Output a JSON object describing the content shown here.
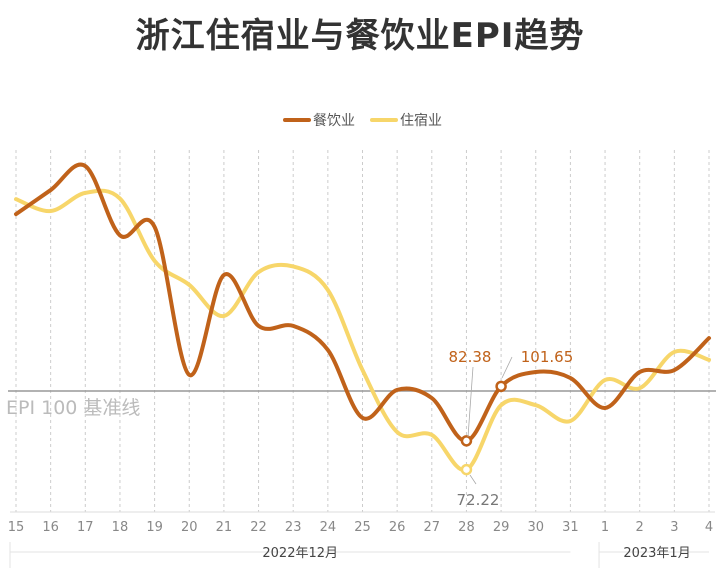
{
  "chart_data": {
    "type": "line",
    "title": "浙江住宿业与餐饮业EPI趋势",
    "categories": [
      "15",
      "16",
      "17",
      "18",
      "19",
      "20",
      "21",
      "22",
      "23",
      "24",
      "25",
      "26",
      "27",
      "28",
      "29",
      "30",
      "31",
      "1",
      "2",
      "3",
      "4"
    ],
    "month_labels": [
      {
        "label": "2022年12月",
        "from": "15",
        "to": "31"
      },
      {
        "label": "2023年1月",
        "from": "1",
        "to": "4"
      }
    ],
    "series": [
      {
        "name": "餐饮业",
        "color": "#c0621a",
        "values": [
          162.5,
          171,
          179.5,
          155,
          158,
          105.7,
          141,
          123,
          123,
          114.5,
          90.5,
          100.4,
          97.5,
          82.38,
          101.65,
          106.7,
          104.6,
          94,
          106.7,
          107.4,
          118.7
        ]
      },
      {
        "name": "住宿业",
        "color": "#f7d66a",
        "values": [
          167.8,
          163.6,
          170,
          168,
          146,
          137.5,
          126.5,
          142,
          144,
          135.7,
          107.4,
          85.5,
          84.5,
          72.22,
          95,
          95,
          89.4,
          103.9,
          101,
          113.8,
          111
        ]
      }
    ],
    "baseline": {
      "value": 100,
      "label": "EPI 100 基准线"
    },
    "annotations": [
      {
        "series": "餐饮业",
        "x": "28",
        "text": "82.38"
      },
      {
        "series": "餐饮业",
        "x": "29",
        "text": "101.65"
      },
      {
        "series": "住宿业",
        "x": "28",
        "text": "72.22"
      }
    ],
    "legend_position": "top-center",
    "grid": "vertical dashed"
  }
}
